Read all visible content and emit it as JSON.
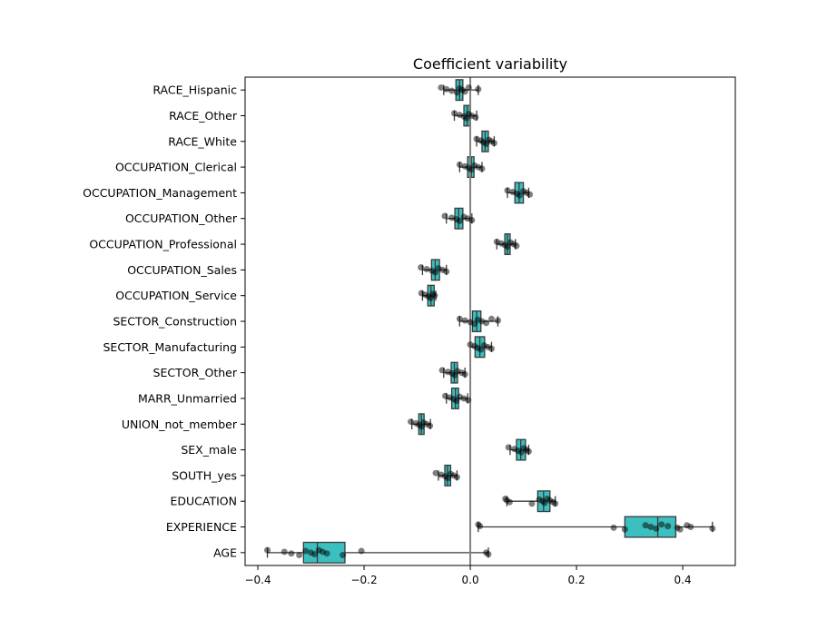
{
  "chart_data": {
    "type": "boxplot",
    "orientation": "horizontal",
    "title": "Coefficient variability",
    "xlabel": "",
    "ylabel": "",
    "xlim": [
      -0.424,
      0.499
    ],
    "xticks": [
      -0.4,
      -0.2,
      0.0,
      0.2,
      0.4
    ],
    "xtick_labels": [
      "−0.4",
      "−0.2",
      "0.0",
      "0.2",
      "0.4"
    ],
    "reference_line_x": 0.0,
    "grid": false,
    "colors": {
      "box": "#3cbfbf",
      "edge": "#3a3a3a",
      "points": "#000000",
      "refline": "#808080"
    },
    "categories": [
      "RACE_Hispanic",
      "RACE_Other",
      "RACE_White",
      "OCCUPATION_Clerical",
      "OCCUPATION_Management",
      "OCCUPATION_Other",
      "OCCUPATION_Professional",
      "OCCUPATION_Sales",
      "OCCUPATION_Service",
      "SECTOR_Construction",
      "SECTOR_Manufacturing",
      "SECTOR_Other",
      "MARR_Unmarried",
      "UNION_not_member",
      "SEX_male",
      "SOUTH_yes",
      "EDUCATION",
      "EXPERIENCE",
      "AGE"
    ],
    "boxes": [
      {
        "whislo": -0.05,
        "q1": -0.027,
        "med": -0.02,
        "q3": -0.014,
        "whishi": 0.015,
        "points": [
          -0.055,
          -0.045,
          -0.035,
          -0.025,
          -0.02,
          -0.015,
          -0.01,
          -0.003,
          0.015
        ]
      },
      {
        "whislo": -0.03,
        "q1": -0.012,
        "med": -0.006,
        "q3": -0.001,
        "whishi": 0.012,
        "points": [
          -0.03,
          -0.02,
          -0.012,
          -0.007,
          -0.003,
          0.003,
          0.01
        ]
      },
      {
        "whislo": 0.012,
        "q1": 0.022,
        "med": 0.028,
        "q3": 0.034,
        "whishi": 0.045,
        "points": [
          0.012,
          0.02,
          0.025,
          0.03,
          0.035,
          0.04,
          0.045
        ]
      },
      {
        "whislo": -0.02,
        "q1": -0.005,
        "med": 0.002,
        "q3": 0.007,
        "whishi": 0.022,
        "points": [
          -0.02,
          -0.01,
          -0.003,
          0.002,
          0.008,
          0.015,
          0.022
        ]
      },
      {
        "whislo": 0.07,
        "q1": 0.084,
        "med": 0.092,
        "q3": 0.1,
        "whishi": 0.11,
        "points": [
          0.07,
          0.08,
          0.088,
          0.093,
          0.1,
          0.106,
          0.112
        ]
      },
      {
        "whislo": -0.045,
        "q1": -0.029,
        "med": -0.022,
        "q3": -0.014,
        "whishi": 0.003,
        "points": [
          -0.048,
          -0.035,
          -0.026,
          -0.02,
          -0.012,
          -0.005,
          0.003
        ]
      },
      {
        "whislo": 0.05,
        "q1": 0.065,
        "med": 0.07,
        "q3": 0.075,
        "whishi": 0.085,
        "points": [
          0.05,
          0.058,
          0.065,
          0.07,
          0.076,
          0.082,
          0.087
        ]
      },
      {
        "whislo": -0.09,
        "q1": -0.073,
        "med": -0.066,
        "q3": -0.058,
        "whishi": -0.045,
        "points": [
          -0.093,
          -0.082,
          -0.072,
          -0.066,
          -0.06,
          -0.052,
          -0.045
        ]
      },
      {
        "whislo": -0.09,
        "q1": -0.08,
        "med": -0.074,
        "q3": -0.068,
        "whishi": -0.065,
        "points": [
          -0.092,
          -0.085,
          -0.079,
          -0.075,
          -0.071,
          -0.067
        ]
      },
      {
        "whislo": -0.02,
        "q1": 0.004,
        "med": 0.012,
        "q3": 0.02,
        "whishi": 0.052,
        "points": [
          -0.02,
          -0.01,
          0.0,
          0.008,
          0.014,
          0.022,
          0.03,
          0.04,
          0.052
        ]
      },
      {
        "whislo": 0.0,
        "q1": 0.009,
        "med": 0.018,
        "q3": 0.027,
        "whishi": 0.04,
        "points": [
          0.0,
          0.008,
          0.014,
          0.02,
          0.026,
          0.033,
          0.04
        ]
      },
      {
        "whislo": -0.05,
        "q1": -0.036,
        "med": -0.03,
        "q3": -0.024,
        "whishi": -0.01,
        "points": [
          -0.053,
          -0.042,
          -0.034,
          -0.029,
          -0.024,
          -0.016,
          -0.01
        ]
      },
      {
        "whislo": -0.045,
        "q1": -0.035,
        "med": -0.028,
        "q3": -0.022,
        "whishi": -0.005,
        "points": [
          -0.047,
          -0.038,
          -0.031,
          -0.026,
          -0.02,
          -0.012,
          -0.004
        ]
      },
      {
        "whislo": -0.11,
        "q1": -0.097,
        "med": -0.092,
        "q3": -0.087,
        "whishi": -0.075,
        "points": [
          -0.112,
          -0.102,
          -0.096,
          -0.092,
          -0.088,
          -0.082,
          -0.076
        ]
      },
      {
        "whislo": 0.075,
        "q1": 0.087,
        "med": 0.095,
        "q3": 0.104,
        "whishi": 0.11,
        "points": [
          0.072,
          0.083,
          0.09,
          0.096,
          0.101,
          0.106,
          0.11
        ]
      },
      {
        "whislo": -0.06,
        "q1": -0.048,
        "med": -0.043,
        "q3": -0.037,
        "whishi": -0.025,
        "points": [
          -0.065,
          -0.055,
          -0.047,
          -0.042,
          -0.037,
          -0.031,
          -0.025
        ]
      },
      {
        "whislo": 0.069,
        "q1": 0.127,
        "med": 0.138,
        "q3": 0.15,
        "whishi": 0.16,
        "points": [
          0.066,
          0.069,
          0.074,
          0.116,
          0.13,
          0.136,
          0.14,
          0.145,
          0.15,
          0.156,
          0.16
        ]
      },
      {
        "whislo": 0.015,
        "q1": 0.291,
        "med": 0.353,
        "q3": 0.387,
        "whishi": 0.456,
        "points": [
          0.015,
          0.018,
          0.27,
          0.291,
          0.33,
          0.34,
          0.35,
          0.36,
          0.372,
          0.39,
          0.395,
          0.408,
          0.415,
          0.456
        ]
      },
      {
        "whislo": -0.382,
        "q1": -0.314,
        "med": -0.288,
        "q3": -0.236,
        "whishi": 0.034,
        "points": [
          -0.382,
          -0.35,
          -0.337,
          -0.322,
          -0.31,
          -0.3,
          -0.293,
          -0.285,
          -0.278,
          -0.27,
          -0.24,
          -0.205,
          0.03,
          0.034
        ]
      }
    ]
  }
}
